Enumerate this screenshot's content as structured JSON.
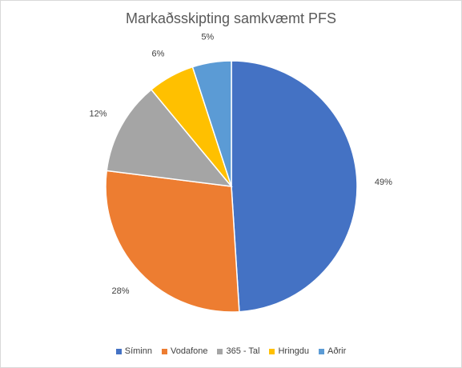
{
  "chart_data": {
    "type": "pie",
    "title": "Markaðsskipting samkvæmt PFS",
    "categories": [
      "Síminn",
      "Vodafone",
      "365 - Tal",
      "Hringdu",
      "Aðrir"
    ],
    "values": [
      49,
      28,
      12,
      6,
      5
    ],
    "labels": [
      "49%",
      "28%",
      "12%",
      "6%",
      "5%"
    ],
    "colors": [
      "#4472c4",
      "#ed7d31",
      "#a5a5a5",
      "#ffc000",
      "#5b9bd5"
    ],
    "start_angle": "12 o'clock",
    "direction": "clockwise",
    "legend_position": "bottom"
  }
}
